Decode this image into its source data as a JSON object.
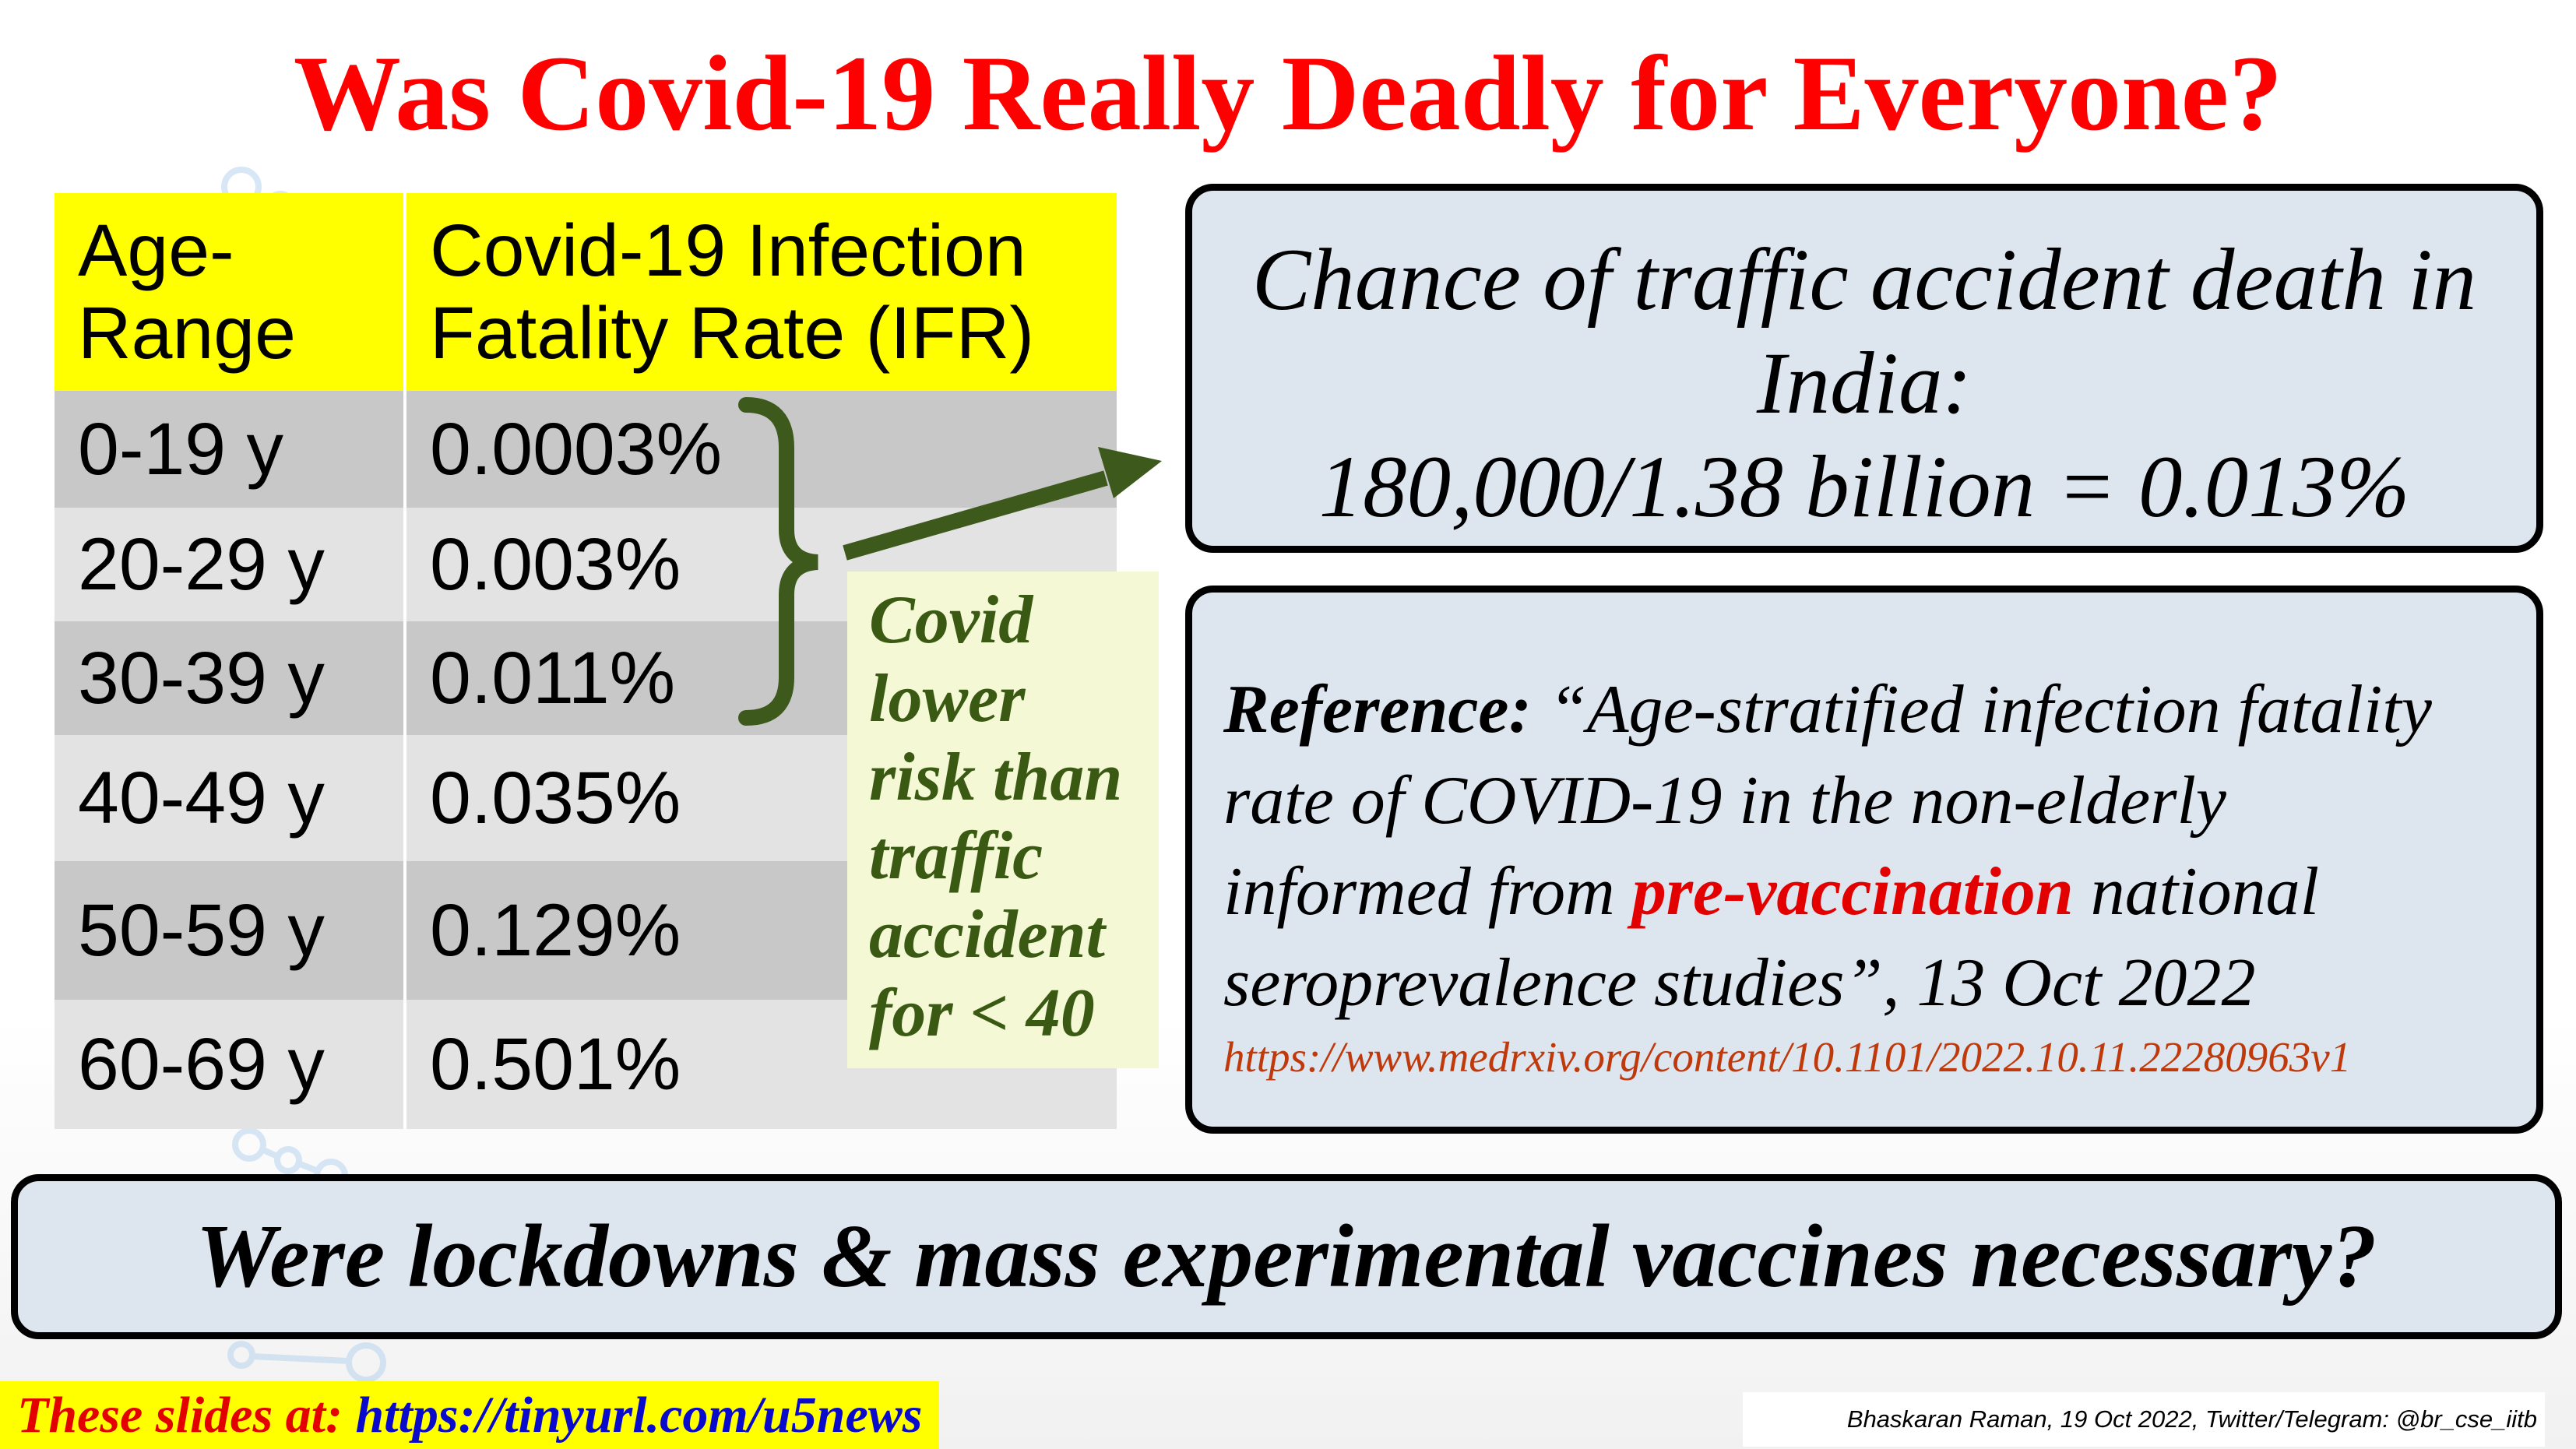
{
  "title": "Was Covid-19 Really Deadly for Everyone?",
  "table": {
    "headers": [
      "Age-Range",
      "Covid-19 Infection Fatality Rate (IFR)"
    ],
    "header_lines": [
      [
        "Age-",
        "Range"
      ],
      [
        "Covid-19 Infection",
        "Fatality Rate (IFR)"
      ]
    ],
    "rows": [
      [
        "0-19 y",
        "0.0003%"
      ],
      [
        "20-29 y",
        "0.003%"
      ],
      [
        "30-39 y",
        "0.011%"
      ],
      [
        "40-49 y",
        "0.035%"
      ],
      [
        "50-59 y",
        "0.129%"
      ],
      [
        "60-69 y",
        "0.501%"
      ]
    ]
  },
  "note": {
    "lines": [
      "Covid",
      "lower",
      "risk than",
      "traffic",
      "accident",
      "for < 40"
    ]
  },
  "traffic_box": {
    "line1": "Chance of traffic accident death in",
    "line2": "India:",
    "line3": "180,000/1.38 billion = 0.013%"
  },
  "reference_box": {
    "label": "Reference:",
    "line1_rest": " “Age-stratified infection fatality",
    "line2": "rate of COVID-19 in the non-elderly",
    "line3_pre": "informed from ",
    "line3_highlight": "pre-vaccination",
    "line3_post": " national",
    "line4": "seroprevalence studies”, 13 Oct 2022",
    "url": "https://www.medrxiv.org/content/10.1101/2022.10.11.22280963v1"
  },
  "question": "Were lockdowns & mass experimental vaccines necessary?",
  "footer": {
    "slides_label": "These slides at: ",
    "slides_url": "https://tinyurl.com/u5news",
    "credit": "Bhaskaran Raman, 19 Oct 2022, Twitter/Telegram: @br_cse_iitb"
  },
  "colors": {
    "title": "#ff0000",
    "header_bg": "#ffff00",
    "note_text": "#3a5a14",
    "note_bg": "#f5f8d4",
    "box_bg": "#dde5ef",
    "highlight_red": "#e30000",
    "url_color": "#c0390b",
    "link_blue": "#0a0acc",
    "brace_arrow": "#3d5a1c"
  }
}
